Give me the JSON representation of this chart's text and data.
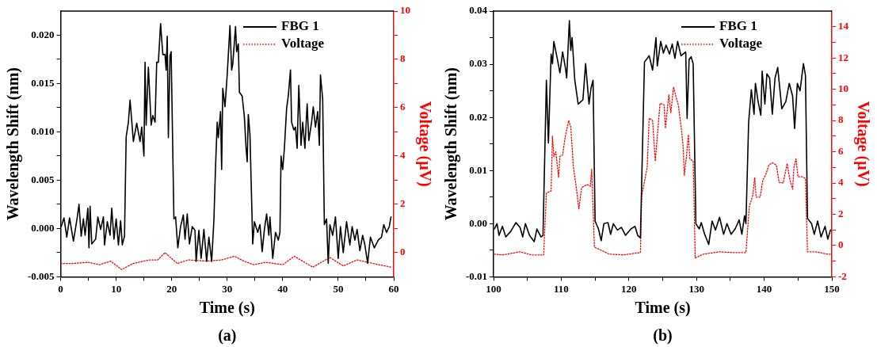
{
  "chart_data": [
    {
      "type": "line",
      "xlabel": "Time (s)",
      "ylabel": "Wavelength Shift (nm)",
      "y2label": "Voltage (μV)",
      "annotations": [
        "(a)"
      ],
      "legend": "top right",
      "grid": false,
      "marker": "none",
      "xlim": [
        0,
        60
      ],
      "xticks": [
        0,
        {
          "value": 5,
          "label": null
        },
        10,
        {
          "value": 15,
          "label": null
        },
        20,
        {
          "value": 25,
          "label": null
        },
        30,
        {
          "value": 35,
          "label": null
        },
        40,
        {
          "value": 45,
          "label": null
        },
        50,
        {
          "value": 55,
          "label": null
        },
        60
      ],
      "ylim": [
        -0.005,
        0.0225
      ],
      "yticks": [
        {
          "value": -0.005,
          "label": "-0.005"
        },
        {
          "value": -0.0025,
          "label": null
        },
        {
          "value": 0,
          "label": "0.000"
        },
        {
          "value": 0.0025,
          "label": null
        },
        {
          "value": 0.005,
          "label": "0.005"
        },
        {
          "value": 0.0075,
          "label": null
        },
        {
          "value": 0.01,
          "label": "0.010"
        },
        {
          "value": 0.0125,
          "label": null
        },
        {
          "value": 0.015,
          "label": "0.015"
        },
        {
          "value": 0.0175,
          "label": null
        },
        {
          "value": 0.02,
          "label": "0.020"
        }
      ],
      "y2lim": [
        -1,
        10
      ],
      "y2ticks": [
        0,
        {
          "value": 1,
          "label": null
        },
        2,
        {
          "value": 3,
          "label": null
        },
        4,
        {
          "value": 5,
          "label": null
        },
        6,
        {
          "value": 7,
          "label": null
        },
        8,
        {
          "value": 9,
          "label": null
        },
        10
      ],
      "series": [
        {
          "name": "FBG 1",
          "color": "#000000",
          "line_style": "solid",
          "x": [
            0.1,
            0.6,
            1.1,
            1.6,
            2.3,
            3.0,
            3.3,
            3.7,
            4.1,
            4.4,
            4.9,
            5.1,
            5.3,
            5.6,
            6.3,
            6.7,
            7.2,
            7.7,
            7.9,
            8.4,
            8.9,
            9.2,
            9.6,
            10.0,
            10.4,
            10.8,
            11.1,
            11.5,
            11.8,
            12.2,
            12.5,
            13.1,
            13.7,
            14.3,
            14.6,
            15.0,
            15.2,
            15.4,
            15.8,
            16.3,
            16.6,
            17.0,
            17.3,
            17.6,
            18.0,
            18.4,
            18.8,
            19.0,
            19.2,
            19.4,
            19.7,
            19.9,
            20.4,
            20.7,
            21.1,
            21.6,
            22.1,
            22.4,
            22.8,
            23.2,
            23.7,
            24.2,
            24.4,
            24.9,
            25.3,
            25.8,
            26.3,
            26.7,
            27.2,
            27.6,
            27.9,
            28.2,
            28.4,
            28.8,
            29.0,
            29.2,
            29.6,
            30.0,
            30.5,
            30.8,
            31.0,
            31.5,
            31.7,
            32.0,
            32.2,
            32.7,
            33.1,
            33.4,
            33.6,
            33.8,
            34.1,
            34.6,
            34.9,
            35.5,
            35.9,
            36.3,
            36.7,
            37.1,
            37.5,
            37.7,
            38.2,
            38.7,
            39.2,
            39.5,
            39.7,
            40.0,
            40.3,
            40.7,
            41.0,
            41.4,
            41.6,
            42.0,
            42.3,
            42.6,
            42.9,
            43.3,
            43.6,
            44.0,
            44.4,
            44.7,
            45.2,
            45.5,
            45.9,
            46.3,
            46.6,
            46.8,
            47.2,
            47.5,
            47.9,
            48.2,
            48.5,
            49.0,
            49.5,
            50.0,
            50.4,
            50.9,
            51.5,
            52.1,
            52.5,
            53.0,
            53.4,
            53.9,
            54.4,
            54.8,
            55.3,
            55.8,
            56.5,
            57.2,
            57.8,
            58.2,
            58.7,
            59.2,
            59.5
          ],
          "values": [
            0.0002,
            0.0011,
            -0.0009,
            0.0011,
            -0.0013,
            0.0012,
            0.0025,
            -0.0008,
            0.001,
            -0.0007,
            0.0021,
            -0.002,
            0.0023,
            -0.0016,
            -0.0011,
            0.0012,
            -0.0001,
            0.0012,
            -0.0017,
            0.0007,
            -0.0007,
            0.0021,
            -0.0011,
            0.001,
            -0.0017,
            0.0008,
            -0.0017,
            -0.0008,
            0.0095,
            0.011,
            0.0133,
            0.009,
            0.0109,
            0.009,
            0.0105,
            0.0075,
            0.0172,
            0.0107,
            0.0167,
            0.0107,
            0.0117,
            0.011,
            0.0172,
            0.0172,
            0.0212,
            0.018,
            0.018,
            0.0164,
            0.0199,
            0.0094,
            0.0179,
            0.0183,
            0.001,
            0.0012,
            -0.002,
            0.0002,
            0.0014,
            -0.0011,
            0.0015,
            -0.0016,
            0.0002,
            -0.0002,
            -0.0034,
            -0.0002,
            -0.0031,
            -0.0001,
            -0.0034,
            -0.0009,
            -0.0034,
            0.0008,
            0.0064,
            0.011,
            0.0094,
            0.0121,
            0.0061,
            0.0145,
            0.0126,
            0.0159,
            0.021,
            0.0164,
            0.017,
            0.0209,
            0.0183,
            0.0191,
            0.0141,
            0.0137,
            0.0115,
            0.0083,
            0.0069,
            0.0118,
            0.0097,
            -0.0016,
            0.0007,
            -0.0004,
            0.0004,
            -0.0024,
            -0.0001,
            0.0015,
            -0.0007,
            0.0012,
            -0.0031,
            -0.0004,
            -0.0012,
            -0.0004,
            0.0075,
            0.0061,
            0.0083,
            0.0124,
            0.0137,
            0.0164,
            0.011,
            0.0102,
            0.0105,
            0.0083,
            0.0148,
            0.0086,
            0.011,
            0.0083,
            0.0129,
            0.0091,
            0.011,
            0.0126,
            0.0105,
            0.0121,
            0.0086,
            0.0159,
            0.0134,
            0.0004,
            0.001,
            -0.0036,
            0.0004,
            -0.0007,
            0.0012,
            -0.0031,
            0.0002,
            -0.0025,
            0.0007,
            -0.0017,
            0.0002,
            -0.0012,
            -0.0001,
            -0.0023,
            -0.0007,
            -0.0017,
            -0.0036,
            -0.0009,
            -0.002,
            -0.0012,
            -0.0009,
            0.0004,
            -0.0004,
            0.0002,
            0.0012
          ]
        },
        {
          "name": "Voltage",
          "color": "#ff0000",
          "line_style": "dotted",
          "axis": "y2",
          "x": [
            0,
            2,
            5,
            7,
            9,
            11,
            13,
            16,
            17.5,
            18.8,
            21,
            23,
            26.3,
            29,
            31.3,
            33,
            34.8,
            36.9,
            40,
            42.1,
            45.4,
            48.5,
            50.9,
            53.4,
            56.3,
            59.5
          ],
          "values": [
            -0.45,
            -0.45,
            -0.4,
            -0.5,
            -0.35,
            -0.7,
            -0.45,
            -0.3,
            -0.3,
            0.0,
            -0.45,
            -0.3,
            -0.35,
            -0.3,
            -0.15,
            -0.35,
            -0.5,
            -0.4,
            -0.5,
            -0.15,
            -0.6,
            -0.2,
            -0.55,
            -0.3,
            -0.45,
            -0.6
          ]
        }
      ]
    },
    {
      "type": "line",
      "xlabel": "Time (s)",
      "ylabel": "Wavelength Shift (nm)",
      "y2label": "Voltage (μV)",
      "annotations": [
        "(b)"
      ],
      "legend": "top right",
      "grid": false,
      "marker": "none",
      "xlim": [
        100,
        150
      ],
      "xticks": [
        100,
        {
          "value": 105,
          "label": null
        },
        110,
        {
          "value": 115,
          "label": null
        },
        120,
        {
          "value": 125,
          "label": null
        },
        130,
        {
          "value": 135,
          "label": null
        },
        140,
        {
          "value": 145,
          "label": null
        },
        150
      ],
      "ylim": [
        -0.01,
        0.04
      ],
      "yticks": [
        {
          "value": -0.01,
          "label": "-0.01"
        },
        {
          "value": -0.005,
          "label": null
        },
        {
          "value": 0,
          "label": "0.00"
        },
        {
          "value": 0.005,
          "label": null
        },
        {
          "value": 0.01,
          "label": "0.01"
        },
        {
          "value": 0.015,
          "label": null
        },
        {
          "value": 0.02,
          "label": "0.02"
        },
        {
          "value": 0.025,
          "label": null
        },
        {
          "value": 0.03,
          "label": "0.03"
        },
        {
          "value": 0.035,
          "label": null
        },
        {
          "value": 0.04,
          "label": "0.04"
        }
      ],
      "y2lim": [
        -2,
        15
      ],
      "y2ticks": [
        -2,
        {
          "value": -1,
          "label": null
        },
        0,
        {
          "value": 1,
          "label": null
        },
        2,
        {
          "value": 3,
          "label": null
        },
        4,
        {
          "value": 5,
          "label": null
        },
        6,
        {
          "value": 7,
          "label": null
        },
        8,
        {
          "value": 9,
          "label": null
        },
        10,
        {
          "value": 11,
          "label": null
        },
        12,
        {
          "value": 13,
          "label": null
        },
        14
      ],
      "series": [
        {
          "name": "FBG 1",
          "color": "#000000",
          "line_style": "solid",
          "x": [
            100.1,
            100.5,
            100.8,
            101.3,
            101.8,
            102.5,
            103.3,
            103.9,
            104.3,
            104.7,
            105.3,
            106.0,
            106.4,
            107.0,
            107.3,
            107.8,
            108.1,
            108.5,
            108.7,
            108.9,
            109.4,
            109.8,
            110.2,
            110.6,
            110.8,
            111.2,
            111.4,
            111.6,
            112.0,
            112.5,
            113.2,
            113.6,
            114.1,
            114.4,
            114.7,
            115.0,
            115.5,
            115.9,
            116.3,
            116.9,
            117.3,
            117.7,
            118.3,
            118.9,
            119.5,
            120.3,
            120.9,
            121.3,
            121.7,
            122.3,
            123.0,
            123.5,
            124.0,
            124.2,
            124.7,
            125.1,
            125.5,
            126.0,
            126.4,
            126.8,
            127.2,
            127.7,
            128.4,
            128.6,
            128.9,
            129.2,
            129.5,
            129.9,
            130.4,
            130.7,
            131.2,
            131.8,
            132.3,
            132.8,
            133.4,
            134.0,
            134.5,
            135.1,
            135.7,
            136.3,
            136.7,
            137.1,
            137.3,
            137.7,
            138.1,
            138.5,
            138.7,
            139.1,
            139.5,
            139.7,
            140.1,
            140.4,
            140.8,
            141.2,
            141.6,
            142.0,
            142.6,
            143.2,
            143.7,
            144.2,
            144.5,
            144.9,
            145.3,
            145.8,
            146.1,
            146.4,
            147.0,
            147.4,
            147.9,
            148.4,
            149.0,
            149.4,
            149.8
          ],
          "values": [
            -0.001,
            0.0,
            -0.0022,
            -0.0005,
            -0.0025,
            -0.0015,
            0.0002,
            -0.0007,
            -0.0025,
            0.0,
            -0.0022,
            -0.0034,
            -0.001,
            -0.0025,
            -0.0022,
            0.027,
            0.0152,
            0.0319,
            0.0301,
            0.0343,
            0.0311,
            0.0284,
            0.0323,
            0.0294,
            0.0274,
            0.0382,
            0.0326,
            0.035,
            0.027,
            0.0225,
            0.0233,
            0.0301,
            0.0225,
            0.0255,
            0.027,
            0.0005,
            -0.001,
            -0.0032,
            0.0,
            0.0002,
            -0.002,
            0.0,
            -0.0012,
            -0.0007,
            -0.0022,
            -0.001,
            -0.0005,
            -0.0022,
            -0.0027,
            0.0304,
            0.0316,
            0.0289,
            0.035,
            0.0297,
            0.0343,
            0.0321,
            0.0336,
            0.0319,
            0.0338,
            0.0311,
            0.0343,
            0.0316,
            0.0323,
            0.0198,
            0.0309,
            0.0314,
            0.0301,
            0.0,
            -0.001,
            0.0002,
            -0.002,
            -0.0039,
            0.0005,
            -0.0012,
            0.0012,
            -0.002,
            0.0,
            -0.002,
            -0.001,
            0.0007,
            -0.002,
            0.0015,
            0.0,
            0.0191,
            0.0252,
            0.0206,
            0.0264,
            0.023,
            0.0204,
            0.0287,
            0.0225,
            0.0282,
            0.0274,
            0.0206,
            0.0274,
            0.0294,
            0.0216,
            0.023,
            0.0264,
            0.024,
            0.0179,
            0.0264,
            0.025,
            0.0301,
            0.0279,
            0.001,
            0.0,
            -0.002,
            0.0005,
            -0.0025,
            -0.0005,
            -0.0029,
            -0.0012
          ]
        },
        {
          "name": "Voltage",
          "color": "#ff0000",
          "line_style": "dotted",
          "axis": "y2",
          "x": [
            100.1,
            101.3,
            103.9,
            105.6,
            107.4,
            107.8,
            108.5,
            108.7,
            108.9,
            109.2,
            109.6,
            109.8,
            110.2,
            110.6,
            111.1,
            111.4,
            111.8,
            112.2,
            112.6,
            113.0,
            113.8,
            114.3,
            114.5,
            114.9,
            115.9,
            117.1,
            119.1,
            121.7,
            121.9,
            122.7,
            123.0,
            123.5,
            123.9,
            124.2,
            124.6,
            125.2,
            125.4,
            125.9,
            126.2,
            126.6,
            127.0,
            127.3,
            127.8,
            128.0,
            128.2,
            128.5,
            128.8,
            129.0,
            129.5,
            129.8,
            131.0,
            133.4,
            135.4,
            137.3,
            137.8,
            138.3,
            138.6,
            138.8,
            139.4,
            139.8,
            140.2,
            140.7,
            141.2,
            141.8,
            142.2,
            142.8,
            143.4,
            143.8,
            144.2,
            144.4,
            144.7,
            145.0,
            145.6,
            146.1,
            146.4,
            147.6,
            149.4,
            149.8
          ],
          "values": [
            -0.55,
            -0.6,
            -0.4,
            -0.6,
            -0.6,
            3.35,
            3.5,
            7.0,
            5.7,
            6.0,
            4.35,
            5.7,
            5.8,
            7.0,
            8.0,
            7.6,
            5.0,
            3.8,
            2.35,
            3.7,
            3.9,
            3.8,
            4.9,
            -0.1,
            -0.3,
            -0.55,
            -0.6,
            -0.45,
            3.2,
            5.0,
            8.15,
            8.0,
            5.4,
            7.0,
            9.1,
            9.0,
            7.5,
            9.65,
            8.5,
            10.15,
            9.45,
            9.0,
            7.3,
            6.4,
            4.5,
            5.7,
            7.1,
            5.55,
            5.4,
            -0.8,
            -0.55,
            -0.4,
            -0.45,
            -0.45,
            2.5,
            3.2,
            4.35,
            3.1,
            3.1,
            4.2,
            4.5,
            5.15,
            5.3,
            5.15,
            4.05,
            4.0,
            5.25,
            4.2,
            3.6,
            5.0,
            5.55,
            4.4,
            4.4,
            4.3,
            -0.4,
            -0.4,
            -0.55,
            -0.55
          ]
        }
      ]
    }
  ]
}
